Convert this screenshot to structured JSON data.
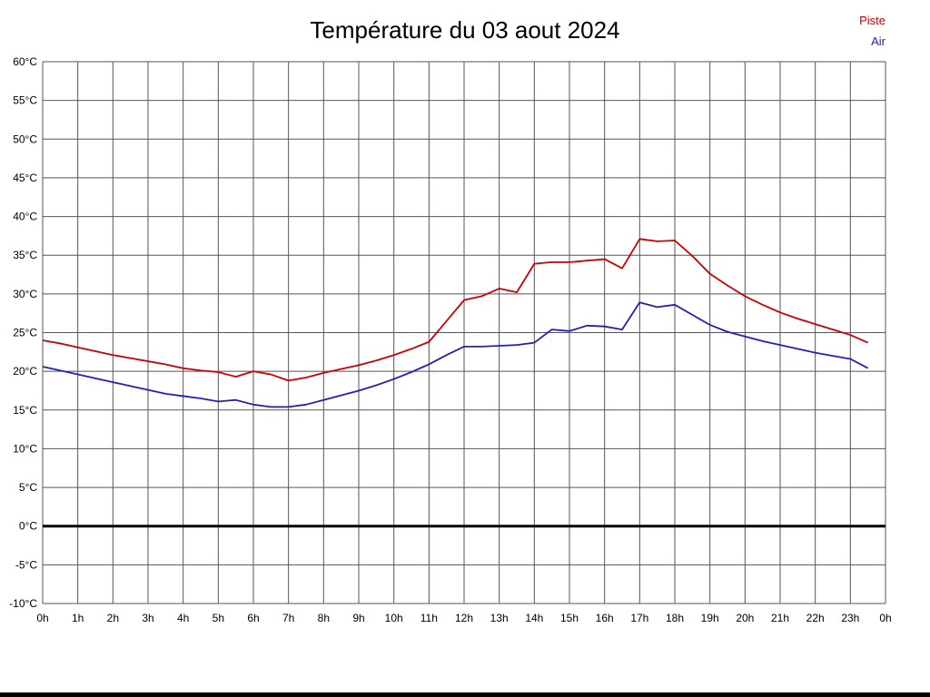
{
  "title": "Température du 03 aout 2024",
  "legend": [
    {
      "label": "Piste",
      "color": "#cc0000"
    },
    {
      "label": "Air",
      "color": "#2020bb"
    }
  ],
  "chart_data": {
    "type": "line",
    "title": "Température du 03 aout 2024",
    "xlabel": "",
    "ylabel": "",
    "xlim": [
      0,
      24
    ],
    "ylim": [
      -10,
      60
    ],
    "grid": true,
    "grid_color": "#555555",
    "axis_text_color": "#000000",
    "legend_position": "top-right",
    "zero_line": {
      "value": 0,
      "color": "#000000",
      "width": 3
    },
    "x_ticks": {
      "values": [
        0,
        1,
        2,
        3,
        4,
        5,
        6,
        7,
        8,
        9,
        10,
        11,
        12,
        13,
        14,
        15,
        16,
        17,
        18,
        19,
        20,
        21,
        22,
        23,
        24
      ],
      "labels": [
        "0h",
        "1h",
        "2h",
        "3h",
        "4h",
        "5h",
        "6h",
        "7h",
        "8h",
        "9h",
        "10h",
        "11h",
        "12h",
        "13h",
        "14h",
        "15h",
        "16h",
        "17h",
        "18h",
        "19h",
        "20h",
        "21h",
        "22h",
        "23h",
        "0h"
      ]
    },
    "y_ticks": {
      "values": [
        60,
        55,
        50,
        45,
        40,
        35,
        30,
        25,
        20,
        15,
        10,
        5,
        0,
        -5,
        -10
      ],
      "labels": [
        "60°C",
        "55°C",
        "50°C",
        "45°C",
        "40°C",
        "35°C",
        "30°C",
        "25°C",
        "20°C",
        "15°C",
        "10°C",
        "5°C",
        "0°C",
        "-5°C",
        "-10°C"
      ]
    },
    "x": [
      0,
      0.5,
      1,
      1.5,
      2,
      2.5,
      3,
      3.5,
      4,
      4.5,
      5,
      5.5,
      6,
      6.5,
      7,
      7.5,
      8,
      8.5,
      9,
      9.5,
      10,
      10.5,
      11,
      11.5,
      12,
      12.5,
      13,
      13.5,
      14,
      14.5,
      15,
      15.5,
      16,
      16.5,
      17,
      17.5,
      18,
      18.5,
      19,
      19.5,
      20,
      20.5,
      21,
      21.5,
      22,
      22.5,
      23,
      23.5
    ],
    "series": [
      {
        "name": "Piste",
        "color": "#cc0000",
        "values": [
          24.0,
          23.6,
          23.1,
          22.6,
          22.1,
          21.7,
          21.3,
          20.9,
          20.4,
          20.1,
          19.9,
          19.3,
          20.0,
          19.6,
          18.8,
          19.2,
          19.8,
          20.3,
          20.8,
          21.4,
          22.1,
          22.9,
          23.8,
          26.5,
          29.2,
          29.7,
          30.7,
          30.2,
          33.9,
          34.1,
          34.1,
          34.3,
          34.5,
          33.3,
          37.1,
          36.8,
          36.9,
          34.9,
          32.6,
          31.1,
          29.7,
          28.6,
          27.6,
          26.8,
          26.1,
          25.4,
          24.7,
          23.7
        ]
      },
      {
        "name": "Air",
        "color": "#2020bb",
        "values": [
          20.6,
          20.1,
          19.6,
          19.1,
          18.6,
          18.1,
          17.6,
          17.1,
          16.8,
          16.5,
          16.1,
          16.3,
          15.7,
          15.4,
          15.4,
          15.7,
          16.3,
          16.9,
          17.5,
          18.2,
          19.0,
          19.9,
          20.9,
          22.1,
          23.2,
          23.2,
          23.3,
          23.4,
          23.7,
          25.4,
          25.2,
          25.9,
          25.8,
          25.4,
          28.9,
          28.3,
          28.6,
          27.3,
          26.0,
          25.1,
          24.5,
          23.9,
          23.4,
          22.9,
          22.4,
          22.0,
          21.6,
          20.4
        ]
      }
    ]
  }
}
